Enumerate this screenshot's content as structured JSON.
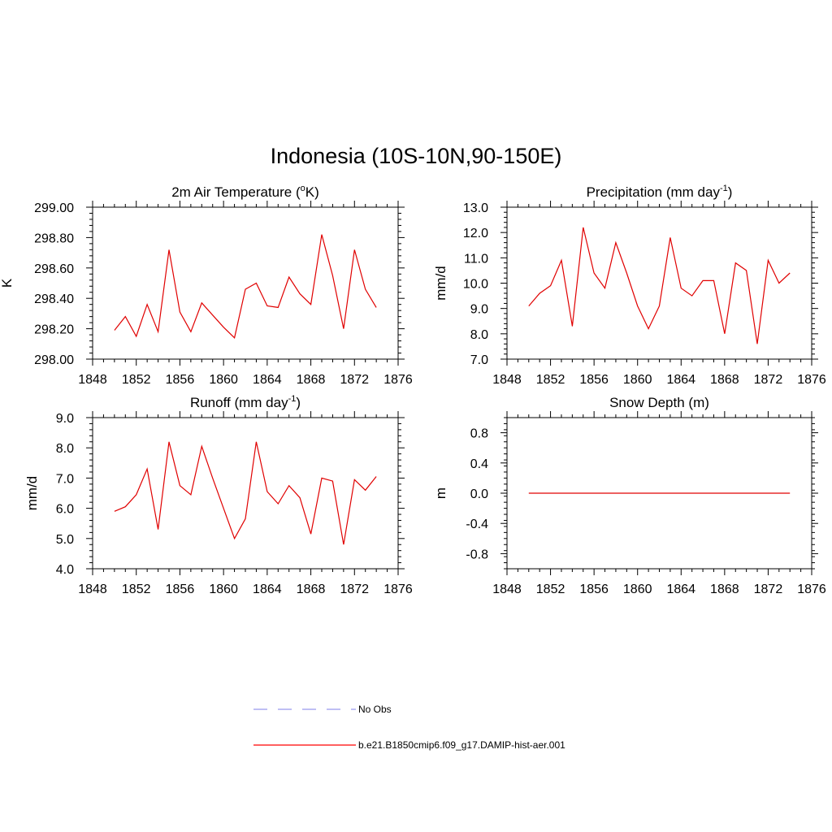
{
  "figure": {
    "title": "Indonesia (10S-10N,90-150E)"
  },
  "chart_data": [
    {
      "type": "line",
      "title_main": "2m Air Temperature (",
      "title_sup": "o",
      "title_after": "K)",
      "ylabel": "K",
      "xlim": [
        1848,
        1876
      ],
      "ylim": [
        298.0,
        299.0
      ],
      "xticks": [
        1848,
        1852,
        1856,
        1860,
        1864,
        1868,
        1872,
        1876
      ],
      "yticks": [
        298.0,
        298.2,
        298.4,
        298.6,
        298.8,
        299.0
      ],
      "ytick_labels": [
        "298.00",
        "298.20",
        "298.40",
        "298.60",
        "298.80",
        "299.00"
      ],
      "x": [
        1850,
        1851,
        1852,
        1853,
        1854,
        1855,
        1856,
        1857,
        1858,
        1859,
        1860,
        1861,
        1862,
        1863,
        1864,
        1865,
        1866,
        1867,
        1868,
        1869,
        1870,
        1871,
        1872,
        1873,
        1874
      ],
      "series": [
        {
          "values": [
            298.19,
            298.28,
            298.15,
            298.36,
            298.18,
            298.72,
            298.31,
            298.18,
            298.37,
            298.29,
            298.21,
            298.14,
            298.46,
            298.5,
            298.35,
            298.34,
            298.54,
            298.43,
            298.36,
            298.82,
            298.55,
            298.2,
            298.72,
            298.46,
            298.34
          ]
        }
      ]
    },
    {
      "type": "line",
      "title_main": "Precipitation (mm day",
      "title_sup": "-1",
      "title_after": ")",
      "ylabel": "mm/d",
      "xlim": [
        1848,
        1876
      ],
      "ylim": [
        7.0,
        13.0
      ],
      "xticks": [
        1848,
        1852,
        1856,
        1860,
        1864,
        1868,
        1872,
        1876
      ],
      "yticks": [
        7.0,
        8.0,
        9.0,
        10.0,
        11.0,
        12.0,
        13.0
      ],
      "ytick_labels": [
        "7.0",
        "8.0",
        "9.0",
        "10.0",
        "11.0",
        "12.0",
        "13.0"
      ],
      "x": [
        1850,
        1851,
        1852,
        1853,
        1854,
        1855,
        1856,
        1857,
        1858,
        1859,
        1860,
        1861,
        1862,
        1863,
        1864,
        1865,
        1866,
        1867,
        1868,
        1869,
        1870,
        1871,
        1872,
        1873,
        1874
      ],
      "series": [
        {
          "values": [
            9.1,
            9.6,
            9.9,
            10.9,
            8.3,
            12.2,
            10.4,
            9.8,
            11.6,
            10.4,
            9.1,
            8.2,
            9.1,
            11.8,
            9.8,
            9.5,
            10.1,
            10.1,
            8.0,
            10.8,
            10.5,
            7.6,
            10.9,
            10.0,
            10.4
          ]
        }
      ]
    },
    {
      "type": "line",
      "title_main": "Runoff (mm day",
      "title_sup": "-1",
      "title_after": ")",
      "ylabel": "mm/d",
      "xlim": [
        1848,
        1876
      ],
      "ylim": [
        4.0,
        9.0
      ],
      "xticks": [
        1848,
        1852,
        1856,
        1860,
        1864,
        1868,
        1872,
        1876
      ],
      "yticks": [
        4.0,
        5.0,
        6.0,
        7.0,
        8.0,
        9.0
      ],
      "ytick_labels": [
        "4.0",
        "5.0",
        "6.0",
        "7.0",
        "8.0",
        "9.0"
      ],
      "x": [
        1850,
        1851,
        1852,
        1853,
        1854,
        1855,
        1856,
        1857,
        1858,
        1859,
        1860,
        1861,
        1862,
        1863,
        1864,
        1865,
        1866,
        1867,
        1868,
        1869,
        1870,
        1871,
        1872,
        1873,
        1874
      ],
      "series": [
        {
          "values": [
            5.9,
            6.05,
            6.45,
            7.3,
            5.3,
            8.2,
            6.75,
            6.45,
            8.05,
            7.0,
            6.0,
            5.0,
            5.65,
            8.2,
            6.55,
            6.15,
            6.75,
            6.35,
            5.15,
            7.0,
            6.9,
            4.8,
            6.95,
            6.6,
            7.05
          ]
        }
      ]
    },
    {
      "type": "line",
      "title_main": "Snow Depth (m)",
      "title_sup": "",
      "title_after": "",
      "ylabel": "m",
      "xlim": [
        1848,
        1876
      ],
      "ylim": [
        -1.0,
        1.0
      ],
      "xticks": [
        1848,
        1852,
        1856,
        1860,
        1864,
        1868,
        1872,
        1876
      ],
      "yticks": [
        -0.8,
        -0.4,
        0.0,
        0.4,
        0.8
      ],
      "ytick_labels": [
        "-0.8",
        "-0.4",
        "0.0",
        "0.4",
        "0.8"
      ],
      "x": [
        1850,
        1851,
        1852,
        1853,
        1854,
        1855,
        1856,
        1857,
        1858,
        1859,
        1860,
        1861,
        1862,
        1863,
        1864,
        1865,
        1866,
        1867,
        1868,
        1869,
        1870,
        1871,
        1872,
        1873,
        1874
      ],
      "series": [
        {
          "values": [
            0,
            0,
            0,
            0,
            0,
            0,
            0,
            0,
            0,
            0,
            0,
            0,
            0,
            0,
            0,
            0,
            0,
            0,
            0,
            0,
            0,
            0,
            0,
            0,
            0
          ]
        }
      ]
    }
  ],
  "legend": {
    "items": [
      {
        "label": "No Obs",
        "color": "#9999ee",
        "dash": true
      },
      {
        "label": "b.e21.B1850cmip6.f09_g17.DAMIP-hist-aer.001",
        "color": "#ff0000",
        "dash": false
      }
    ]
  },
  "colors": {
    "line": "#e00000",
    "axis": "#000000"
  }
}
